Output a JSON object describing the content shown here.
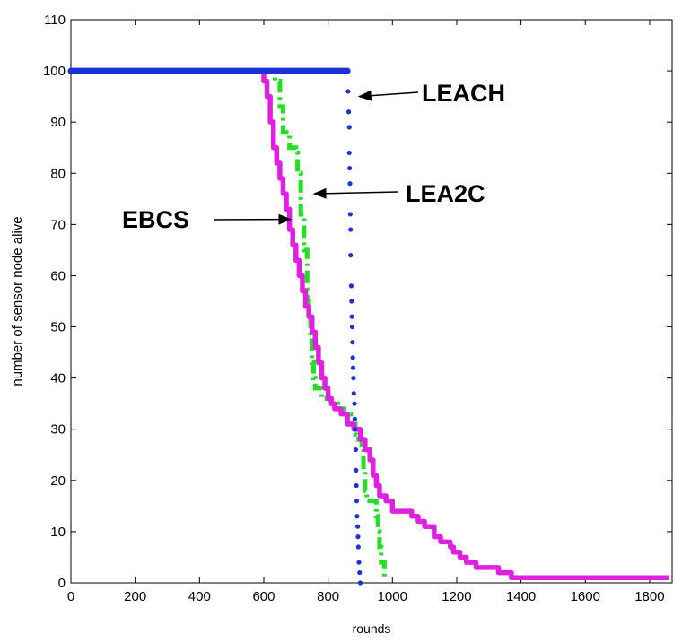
{
  "chart_data": {
    "type": "scatter",
    "title": "",
    "xlabel": "rounds",
    "ylabel": "number of sensor node alive",
    "xlim": [
      0,
      1870
    ],
    "ylim": [
      0,
      110
    ],
    "x_ticks": [
      0,
      200,
      400,
      600,
      800,
      1000,
      1200,
      1400,
      1600,
      1800
    ],
    "y_ticks": [
      0,
      10,
      20,
      30,
      40,
      50,
      60,
      70,
      80,
      90,
      100,
      110
    ],
    "grid": false,
    "legend": "none",
    "series": [
      {
        "name": "LEACH",
        "color": "#1a33d6",
        "marker": "dot",
        "points": [
          [
            0,
            100
          ],
          [
            860,
            100
          ],
          [
            862,
            96
          ],
          [
            864,
            92
          ],
          [
            866,
            89
          ],
          [
            866,
            84
          ],
          [
            867,
            81
          ],
          [
            868,
            78
          ],
          [
            869,
            72
          ],
          [
            870,
            69
          ],
          [
            870,
            64
          ],
          [
            872,
            58
          ],
          [
            873,
            55
          ],
          [
            874,
            52
          ],
          [
            875,
            50
          ],
          [
            876,
            47
          ],
          [
            877,
            44
          ],
          [
            878,
            42
          ],
          [
            879,
            40
          ],
          [
            880,
            37
          ],
          [
            882,
            35
          ],
          [
            883,
            32
          ],
          [
            884,
            30
          ],
          [
            886,
            26
          ],
          [
            887,
            22
          ],
          [
            888,
            19
          ],
          [
            889,
            16
          ],
          [
            890,
            13
          ],
          [
            892,
            11
          ],
          [
            893,
            9
          ],
          [
            894,
            7
          ],
          [
            896,
            4
          ],
          [
            898,
            2
          ],
          [
            900,
            0
          ]
        ]
      },
      {
        "name": "LEA2C",
        "color": "#22e022",
        "marker": "dashdot",
        "points": [
          [
            0,
            100
          ],
          [
            630,
            100
          ],
          [
            635,
            98
          ],
          [
            650,
            93
          ],
          [
            660,
            88
          ],
          [
            680,
            85
          ],
          [
            700,
            84
          ],
          [
            705,
            80
          ],
          [
            715,
            72
          ],
          [
            725,
            65
          ],
          [
            735,
            55
          ],
          [
            740,
            52
          ],
          [
            745,
            48
          ],
          [
            750,
            43
          ],
          [
            755,
            40
          ],
          [
            760,
            38
          ],
          [
            780,
            36
          ],
          [
            810,
            35
          ],
          [
            830,
            34
          ],
          [
            840,
            34
          ],
          [
            850,
            33
          ],
          [
            870,
            31
          ],
          [
            885,
            29
          ],
          [
            895,
            28
          ],
          [
            905,
            27
          ],
          [
            910,
            22
          ],
          [
            915,
            18
          ],
          [
            920,
            16
          ],
          [
            945,
            16
          ],
          [
            950,
            13
          ],
          [
            955,
            10
          ],
          [
            960,
            7
          ],
          [
            965,
            4
          ],
          [
            975,
            1
          ]
        ]
      },
      {
        "name": "EBCS",
        "color": "#e020e0",
        "marker": "line",
        "points": [
          [
            0,
            100
          ],
          [
            590,
            100
          ],
          [
            600,
            98
          ],
          [
            610,
            95
          ],
          [
            620,
            90
          ],
          [
            630,
            85
          ],
          [
            640,
            82
          ],
          [
            650,
            79
          ],
          [
            660,
            76
          ],
          [
            670,
            73
          ],
          [
            680,
            69
          ],
          [
            690,
            66
          ],
          [
            700,
            63
          ],
          [
            710,
            60
          ],
          [
            720,
            57
          ],
          [
            730,
            54
          ],
          [
            740,
            52
          ],
          [
            750,
            49
          ],
          [
            760,
            46
          ],
          [
            770,
            43
          ],
          [
            780,
            40
          ],
          [
            790,
            38
          ],
          [
            800,
            36
          ],
          [
            810,
            35
          ],
          [
            820,
            34
          ],
          [
            840,
            33
          ],
          [
            860,
            31
          ],
          [
            880,
            30
          ],
          [
            900,
            28
          ],
          [
            915,
            26
          ],
          [
            930,
            24
          ],
          [
            940,
            21
          ],
          [
            950,
            19
          ],
          [
            960,
            17
          ],
          [
            980,
            16
          ],
          [
            1000,
            14
          ],
          [
            1060,
            13
          ],
          [
            1080,
            12
          ],
          [
            1100,
            11
          ],
          [
            1130,
            9
          ],
          [
            1150,
            8
          ],
          [
            1180,
            7
          ],
          [
            1190,
            6
          ],
          [
            1210,
            5
          ],
          [
            1230,
            4
          ],
          [
            1260,
            3
          ],
          [
            1300,
            3
          ],
          [
            1330,
            2
          ],
          [
            1370,
            1
          ],
          [
            1860,
            1
          ]
        ]
      }
    ],
    "annotations": [
      {
        "text": "LEACH",
        "target_x": 880,
        "target_y": 95,
        "color": "#1a33d6"
      },
      {
        "text": "LEA2C",
        "target_x": 740,
        "target_y": 76,
        "color": "#22e022"
      },
      {
        "text": "EBCS",
        "target_x": 700,
        "target_y": 71,
        "color": "#e020e0"
      }
    ]
  }
}
